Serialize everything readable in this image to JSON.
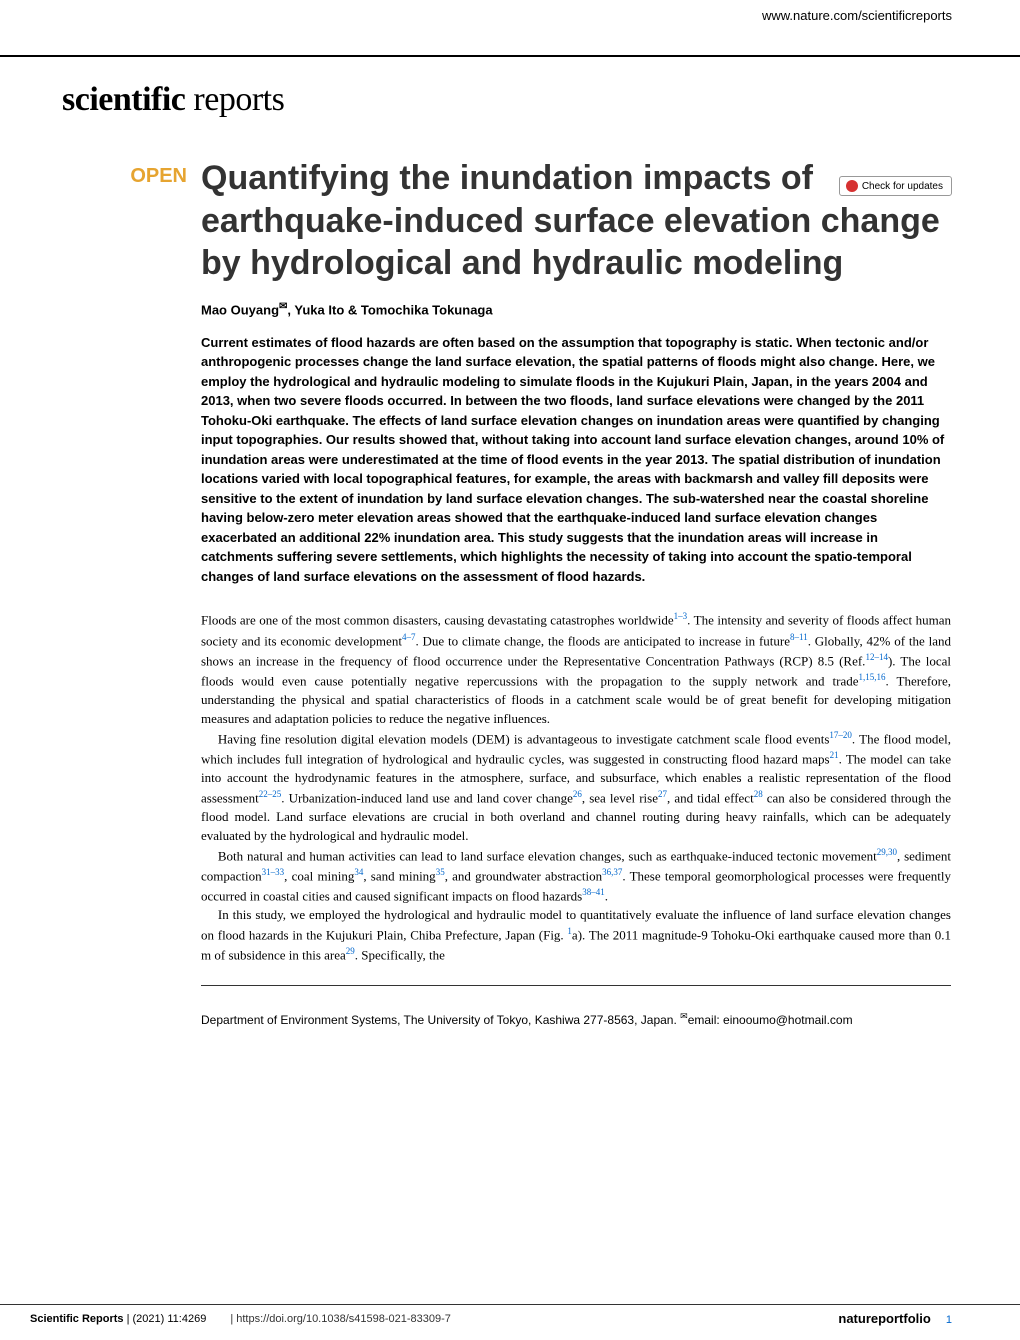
{
  "header": {
    "site_url": "www.nature.com/scientificreports",
    "journal_bold": "scientific",
    "journal_light": " reports",
    "check_updates": "Check for updates"
  },
  "badge": {
    "open": "OPEN"
  },
  "article": {
    "title": "Quantifying the inundation impacts of earthquake-induced surface elevation change by hydrological and hydraulic modeling",
    "author1": "Mao Ouyang",
    "author_sep1": ", ",
    "author2": "Yuka Ito",
    "author_sep2": " & ",
    "author3": "Tomochika Tokunaga"
  },
  "abstract": "Current estimates of flood hazards are often based on the assumption that topography is static. When tectonic and/or anthropogenic processes change the land surface elevation, the spatial patterns of floods might also change. Here, we employ the hydrological and hydraulic modeling to simulate floods in the Kujukuri Plain, Japan, in the years 2004 and 2013, when two severe floods occurred. In between the two floods, land surface elevations were changed by the 2011 Tohoku-Oki earthquake. The effects of land surface elevation changes on inundation areas were quantified by changing input topographies. Our results showed that, without taking into account land surface elevation changes, around 10% of inundation areas were underestimated at the time of flood events in the year 2013. The spatial distribution of inundation locations varied with local topographical features, for example, the areas with backmarsh and valley fill deposits were sensitive to the extent of inundation by land surface elevation changes. The sub-watershed near the coastal shoreline having below-zero meter elevation areas showed that the earthquake-induced land surface elevation changes exacerbated an additional 22% inundation area. This study suggests that the inundation areas will increase in catchments suffering severe settlements, which highlights the necessity of taking into account the spatio-temporal changes of land surface elevations on the assessment of flood hazards.",
  "body": {
    "p1a": "Floods are one of the most common disasters, causing devastating catastrophes worldwide",
    "p1_ref1": "1–3",
    "p1b": ". The intensity and severity of floods affect human society and its economic development",
    "p1_ref2": "4–7",
    "p1c": ". Due to climate change, the floods are anticipated to increase in future",
    "p1_ref3": "8–11",
    "p1d": ". Globally, 42% of the land shows an increase in the frequency of flood occurrence under the Representative Concentration Pathways (RCP) 8.5 (Ref.",
    "p1_ref4": "12–14",
    "p1e": "). The local floods would even cause potentially negative repercussions with the propagation to the supply network and trade",
    "p1_ref5": "1,15,16",
    "p1f": ". Therefore, understanding the physical and spatial characteristics of floods in a catchment scale would be of great benefit for developing mitigation measures and adaptation policies to reduce the negative influences.",
    "p2a": "Having fine resolution digital elevation models (DEM) is advantageous to investigate catchment scale flood events",
    "p2_ref1": "17–20",
    "p2b": ". The flood model, which includes full integration of hydrological and hydraulic cycles, was suggested in constructing flood hazard maps",
    "p2_ref2": "21",
    "p2c": ". The model can take into account the hydrodynamic features in the atmosphere, surface, and subsurface, which enables a realistic representation of the flood assessment",
    "p2_ref3": "22–25",
    "p2d": ". Urbanization-induced land use and land cover change",
    "p2_ref4": "26",
    "p2e": ", sea level rise",
    "p2_ref5": "27",
    "p2f": ", and tidal effect",
    "p2_ref6": "28",
    "p2g": " can also be considered through the flood model. Land surface elevations are crucial in both overland and channel routing during heavy rainfalls, which can be adequately evaluated by the hydrological and hydraulic model.",
    "p3a": "Both natural and human activities can lead to land surface elevation changes, such as earthquake-induced tectonic movement",
    "p3_ref1": "29,30",
    "p3b": ", sediment compaction",
    "p3_ref2": "31–33",
    "p3c": ", coal mining",
    "p3_ref3": "34",
    "p3d": ", sand mining",
    "p3_ref4": "35",
    "p3e": ", and groundwater abstraction",
    "p3_ref5": "36,37",
    "p3f": ". These temporal geomorphological processes were frequently occurred in coastal cities and caused significant impacts on flood hazards",
    "p3_ref6": "38–41",
    "p3g": ".",
    "p4a": "In this study, we employed the hydrological and hydraulic model to quantitatively evaluate the influence of land surface elevation changes on flood hazards in the Kujukuri Plain, Chiba Prefecture, Japan (Fig. ",
    "p4_fig": "1",
    "p4b": "a). The 2011 magnitude-9 Tohoku-Oki earthquake caused more than 0.1 m of subsidence in this area",
    "p4_ref1": "29",
    "p4c": ". Specifically, the"
  },
  "affiliation": {
    "text": "Department of Environment Systems, The University of Tokyo, Kashiwa 277-8563, Japan. ",
    "email_label": "email: ",
    "email": "einooumo@hotmail.com"
  },
  "footer": {
    "journal": "Scientific Reports",
    "issue": "(2021) 11:4269",
    "doi": "| https://doi.org/10.1038/s41598-021-83309-7",
    "publisher": "natureportfolio",
    "page": "1"
  },
  "colors": {
    "accent_orange": "#e6a430",
    "link_blue": "#0066cc",
    "check_red": "#d63131"
  }
}
